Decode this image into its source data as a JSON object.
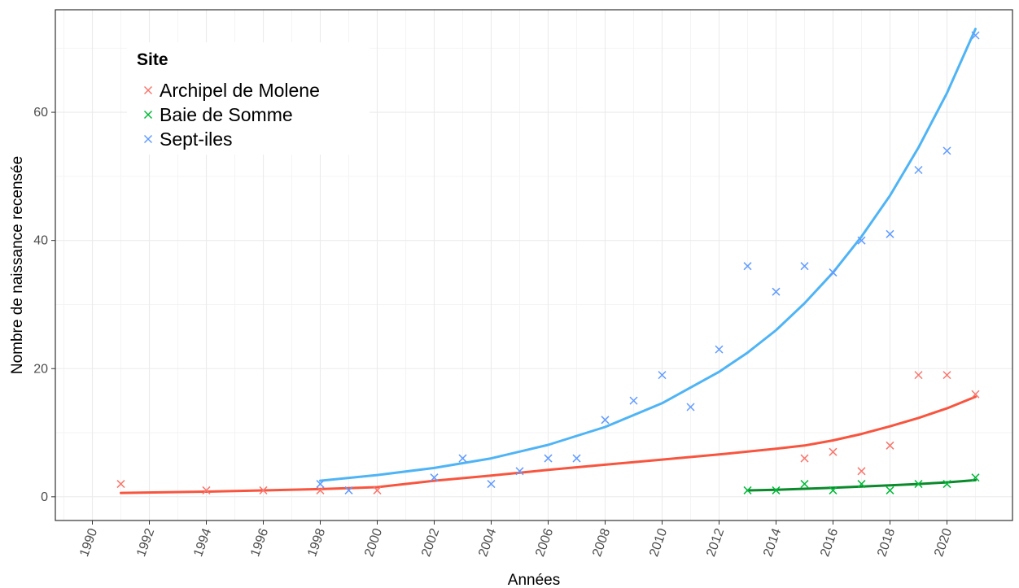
{
  "chart_data": {
    "type": "scatter",
    "xlabel": "Années",
    "ylabel": "Nombre de naissance recensée",
    "xlim": [
      1988.7,
      2022.3
    ],
    "ylim": [
      -3.7,
      76.0
    ],
    "x_ticks": [
      1990,
      1992,
      1994,
      1996,
      1998,
      2000,
      2002,
      2004,
      2006,
      2008,
      2010,
      2012,
      2014,
      2016,
      2018,
      2020
    ],
    "x_tick_labels": [
      "1990",
      "1992",
      "1994",
      "1996",
      "1998",
      "2000",
      "2002",
      "2004",
      "2006",
      "2008",
      "2010",
      "2012",
      "2014",
      "2016",
      "2018",
      "2020"
    ],
    "y_ticks": [
      0,
      20,
      40,
      60
    ],
    "y_tick_labels": [
      "0",
      "20",
      "40",
      "60"
    ],
    "grid": true,
    "legend": {
      "title": "Site",
      "position": "top-left"
    },
    "series": [
      {
        "name": "Archipel de Molene",
        "color": "#f8766d",
        "line_color": "#f8553f",
        "x": [
          1991,
          1994,
          1996,
          1998,
          2000,
          2015,
          2016,
          2017,
          2018,
          2019,
          2020,
          2021
        ],
        "y": [
          2,
          1,
          1,
          1,
          1,
          6,
          7,
          4,
          8,
          19,
          19,
          16
        ],
        "fit_x": [
          1991,
          1994,
          1996,
          1998,
          2000,
          2002,
          2004,
          2006,
          2008,
          2010,
          2012,
          2014,
          2015,
          2016,
          2017,
          2018,
          2019,
          2020,
          2021
        ],
        "fit_y": [
          0.6,
          0.8,
          1.0,
          1.2,
          1.5,
          2.5,
          3.3,
          4.2,
          5.0,
          5.8,
          6.6,
          7.5,
          8.0,
          8.8,
          9.8,
          11.0,
          12.3,
          13.8,
          15.6
        ]
      },
      {
        "name": "Baie de Somme",
        "color": "#00ba38",
        "line_color": "#0b8a2c",
        "x": [
          2013,
          2014,
          2015,
          2016,
          2017,
          2018,
          2019,
          2020,
          2021
        ],
        "y": [
          1,
          1,
          2,
          1,
          2,
          1,
          2,
          2,
          3
        ],
        "fit_x": [
          2013,
          2014,
          2015,
          2016,
          2017,
          2018,
          2019,
          2020,
          2021
        ],
        "fit_y": [
          1.0,
          1.1,
          1.25,
          1.4,
          1.6,
          1.8,
          2.0,
          2.25,
          2.6
        ]
      },
      {
        "name": "Sept-iles",
        "color": "#619cff",
        "line_color": "#4fb4f5",
        "x": [
          1998,
          1999,
          2002,
          2003,
          2004,
          2005,
          2006,
          2007,
          2008,
          2009,
          2010,
          2011,
          2012,
          2013,
          2014,
          2015,
          2016,
          2017,
          2018,
          2019,
          2020,
          2021
        ],
        "y": [
          2,
          1,
          3,
          6,
          2,
          4,
          6,
          6,
          12,
          15,
          19,
          14,
          23,
          36,
          32,
          36,
          35,
          40,
          41,
          51,
          54,
          72
        ],
        "fit_x": [
          1998,
          2000,
          2002,
          2004,
          2006,
          2008,
          2010,
          2012,
          2013,
          2014,
          2015,
          2016,
          2017,
          2018,
          2019,
          2020,
          2021
        ],
        "fit_y": [
          2.5,
          3.4,
          4.5,
          6.0,
          8.1,
          10.9,
          14.6,
          19.5,
          22.5,
          26.0,
          30.2,
          35.0,
          40.6,
          47.0,
          54.5,
          63.0,
          73.0
        ]
      }
    ]
  }
}
